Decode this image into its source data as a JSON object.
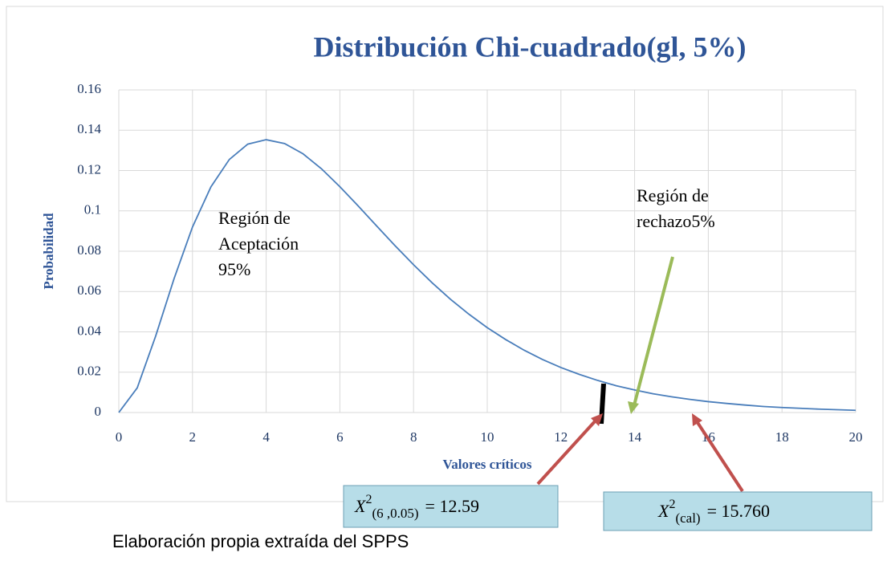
{
  "chart_data": {
    "type": "line",
    "title": "Distribución Chi-cuadrado(gl, 5%)",
    "xlabel": "Valores críticos",
    "ylabel": "Probabilidad",
    "x": [
      0,
      0.5,
      1,
      1.5,
      2,
      2.5,
      3,
      3.5,
      4,
      4.5,
      5,
      5.5,
      6,
      6.5,
      7,
      7.5,
      8,
      8.5,
      9,
      9.5,
      10,
      10.5,
      11,
      11.5,
      12,
      12.5,
      13,
      13.5,
      14,
      14.5,
      15,
      15.5,
      16,
      16.5,
      17,
      17.5,
      18,
      18.5,
      19,
      19.5,
      20
    ],
    "values": [
      0,
      0.0122,
      0.0379,
      0.0664,
      0.092,
      0.1119,
      0.1255,
      0.1331,
      0.1353,
      0.1334,
      0.1283,
      0.1209,
      0.112,
      0.1024,
      0.0925,
      0.0827,
      0.0733,
      0.0644,
      0.0562,
      0.0488,
      0.0421,
      0.0362,
      0.0309,
      0.0263,
      0.0223,
      0.0189,
      0.0159,
      0.0133,
      0.0112,
      0.0093,
      0.0078,
      0.0065,
      0.0054,
      0.0045,
      0.0037,
      0.003,
      0.0025,
      0.0021,
      0.0017,
      0.0014,
      0.0011
    ],
    "color": "#4a7ebb",
    "xlim": [
      0,
      20
    ],
    "ylim": [
      0,
      0.16
    ],
    "xticks": [
      0,
      2,
      4,
      6,
      8,
      10,
      12,
      14,
      16,
      18,
      20
    ],
    "yticks": [
      0,
      0.02,
      0.04,
      0.06,
      0.08,
      0.1,
      0.12,
      0.14,
      0.16
    ],
    "grid": true,
    "annotations": [
      {
        "lines": [
          "Región de",
          "Aceptación",
          "95%"
        ]
      },
      {
        "lines": [
          "Región de",
          "rechazo5%"
        ]
      }
    ],
    "formulas": [
      {
        "base": "X",
        "sup": "2",
        "sub": "(6 ,0.05)",
        "rhs": "= 12.59"
      },
      {
        "base": "X",
        "sup": "2",
        "sub": "(cal)",
        "rhs": "= 15.760"
      }
    ],
    "source": "Elaboración propia extraída del SPPS"
  }
}
